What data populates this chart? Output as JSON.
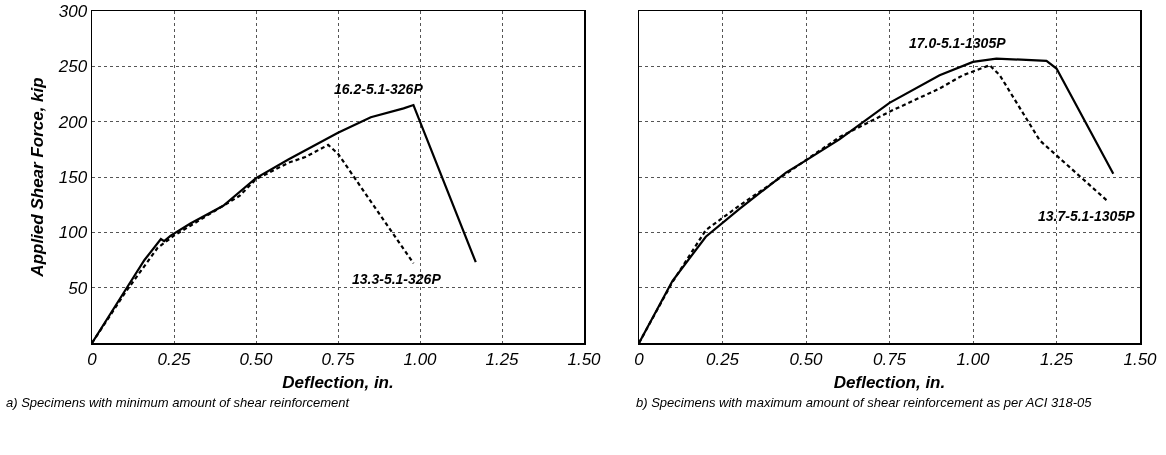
{
  "chart_data": [
    {
      "type": "line",
      "xlabel": "Deflection, in.",
      "ylabel": "Applied Shear Force, kip",
      "xlim": [
        0,
        1.5
      ],
      "ylim": [
        0,
        300
      ],
      "xticks": [
        0,
        0.25,
        {
          "value": 0.5,
          "label": "0.50"
        },
        0.75,
        {
          "value": 1,
          "label": "1.00"
        },
        1.25,
        {
          "value": 1.5,
          "label": "1.50"
        }
      ],
      "yticks": [
        {
          "value": 0,
          "label": null
        },
        50,
        100,
        150,
        200,
        250,
        300
      ],
      "grid": true,
      "legend": false,
      "marker": "none",
      "annotations": [
        "a) Specimens with minimum amount of shear reinforcement"
      ],
      "series": [
        {
          "name": "16.2-5.1-326P",
          "color": "#000000",
          "line_style": "solid",
          "x": [
            0,
            0.1,
            0.16,
            0.21,
            0.22,
            0.24,
            0.3,
            0.4,
            0.5,
            0.6,
            0.75,
            0.85,
            0.95,
            0.98,
            1.17
          ],
          "values": [
            0,
            47,
            75,
            94,
            92,
            97,
            108,
            124,
            149,
            166,
            190,
            204,
            212,
            215,
            73
          ]
        },
        {
          "name": "13.3-5.1-326P",
          "color": "#000000",
          "line_style": "dashed",
          "x": [
            0,
            0.1,
            0.2,
            0.25,
            0.3,
            0.45,
            0.5,
            0.6,
            0.65,
            0.72,
            0.75,
            0.98
          ],
          "values": [
            0,
            45,
            86,
            97,
            106,
            133,
            148,
            163,
            168,
            179,
            171,
            72
          ]
        }
      ]
    },
    {
      "type": "line",
      "xlabel": "Deflection, in.",
      "xlim": [
        0,
        1.5
      ],
      "ylim": [
        0,
        300
      ],
      "xticks": [
        0,
        0.25,
        {
          "value": 0.5,
          "label": "0.50"
        },
        0.75,
        {
          "value": 1,
          "label": "1.00"
        },
        1.25,
        {
          "value": 1.5,
          "label": "1.50"
        }
      ],
      "yticks": [
        0,
        50,
        100,
        150,
        200,
        250,
        300
      ],
      "tick_labels": "x",
      "grid": true,
      "legend": false,
      "marker": "none",
      "annotations": [
        "b) Specimens with maximum amount of shear reinforcement as per ACI 318-05"
      ],
      "series": [
        {
          "name": "17.0-5.1-1305P",
          "color": "#000000",
          "line_style": "solid",
          "x": [
            0,
            0.1,
            0.2,
            0.3,
            0.44,
            0.5,
            0.6,
            0.75,
            0.9,
            1.0,
            1.07,
            1.22,
            1.25,
            1.42
          ],
          "values": [
            0,
            56,
            96,
            121,
            154,
            165,
            184,
            217,
            242,
            254,
            257,
            255,
            248,
            153
          ]
        },
        {
          "name": "13.7-5.1-1305P",
          "color": "#000000",
          "line_style": "dashed",
          "x": [
            0,
            0.1,
            0.2,
            0.3,
            0.45,
            0.6,
            0.75,
            0.9,
            0.97,
            1.05,
            1.08,
            1.2,
            1.4
          ],
          "values": [
            0,
            55,
            102,
            124,
            155,
            186,
            209,
            230,
            242,
            251,
            242,
            183,
            129
          ]
        }
      ]
    }
  ]
}
